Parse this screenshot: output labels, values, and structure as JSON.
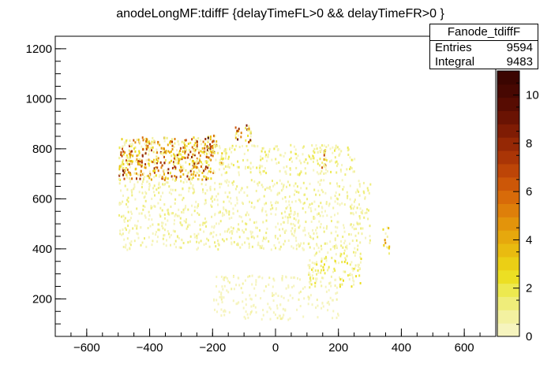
{
  "chart_data": {
    "type": "heatmap",
    "title": "anodeLongMF:tdiffF {delayTimeFL>0 && delayTimeFR>0 }",
    "xlabel": "",
    "ylabel": "",
    "xlim": [
      -700,
      700
    ],
    "ylim": [
      50,
      1250
    ],
    "xticks": [
      -600,
      -400,
      -200,
      0,
      200,
      400,
      600
    ],
    "yticks": [
      200,
      400,
      600,
      800,
      1000,
      1200
    ],
    "colorbar": {
      "range": [
        0,
        11
      ],
      "ticks": [
        0,
        2,
        4,
        6,
        8,
        10
      ]
    },
    "palette": [
      "#f6f4be",
      "#f3f1a0",
      "#efed7a",
      "#ede94f",
      "#ecdf23",
      "#ebcf15",
      "#e9bb10",
      "#e6a80d",
      "#e3940b",
      "#de7f0a",
      "#d86b09",
      "#cc5708",
      "#bd4507",
      "#aa3506",
      "#952805",
      "#7f1c04",
      "#6a1303",
      "#570c02",
      "#470802",
      "#3b0501"
    ],
    "clusters": [
      {
        "x": [
          -500,
          -200
        ],
        "y": [
          680,
          850
        ],
        "weight": 0.75
      },
      {
        "x": [
          -220,
          -190
        ],
        "y": [
          790,
          860
        ],
        "weight": 1.0
      },
      {
        "x": [
          -490,
          -460
        ],
        "y": [
          700,
          760
        ],
        "weight": 0.9
      },
      {
        "x": [
          -100,
          -80
        ],
        "y": [
          830,
          900
        ],
        "weight": 1.0
      },
      {
        "x": [
          -130,
          -110
        ],
        "y": [
          840,
          890
        ],
        "weight": 0.9
      },
      {
        "x": [
          -180,
          -160
        ],
        "y": [
          730,
          790
        ],
        "weight": 0.6
      },
      {
        "x": [
          145,
          160
        ],
        "y": [
          720,
          800
        ],
        "weight": 0.85
      },
      {
        "x": [
          -200,
          250
        ],
        "y": [
          700,
          820
        ],
        "weight": 0.2
      },
      {
        "x": [
          -500,
          300
        ],
        "y": [
          400,
          680
        ],
        "weight": 0.15
      },
      {
        "x": [
          100,
          270
        ],
        "y": [
          250,
          400
        ],
        "weight": 0.25
      },
      {
        "x": [
          340,
          360
        ],
        "y": [
          380,
          490
        ],
        "weight": 0.45
      },
      {
        "x": [
          -200,
          200
        ],
        "y": [
          120,
          300
        ],
        "weight": 0.06
      }
    ],
    "stats": {
      "name": "Fanode_tdiffF",
      "entries_label": "Entries",
      "entries": "9594",
      "integral_label": "Integral",
      "integral": "9483"
    }
  }
}
